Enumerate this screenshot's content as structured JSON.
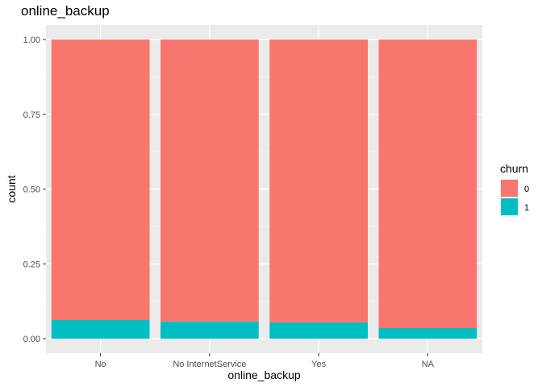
{
  "chart_data": {
    "type": "bar",
    "stacked": true,
    "position": "fill",
    "title": "online_backup",
    "xlabel": "online_backup",
    "ylabel": "count",
    "categories": [
      "No",
      "No InternetService",
      "Yes",
      "NA"
    ],
    "series": [
      {
        "name": "0",
        "color": "#F8766D",
        "values": [
          0.938,
          0.943,
          0.946,
          0.965
        ]
      },
      {
        "name": "1",
        "color": "#00BFC4",
        "values": [
          0.062,
          0.057,
          0.054,
          0.035
        ]
      }
    ],
    "ylim": [
      0,
      1
    ],
    "yticks": [
      "0.00",
      "0.25",
      "0.50",
      "0.75",
      "1.00"
    ],
    "ytick_values": [
      0,
      0.25,
      0.5,
      0.75,
      1.0
    ],
    "grid": true,
    "legend": {
      "title": "churn",
      "placement": "right",
      "entries": [
        "0",
        "1"
      ]
    },
    "panel_background": "#EBEBEB"
  }
}
